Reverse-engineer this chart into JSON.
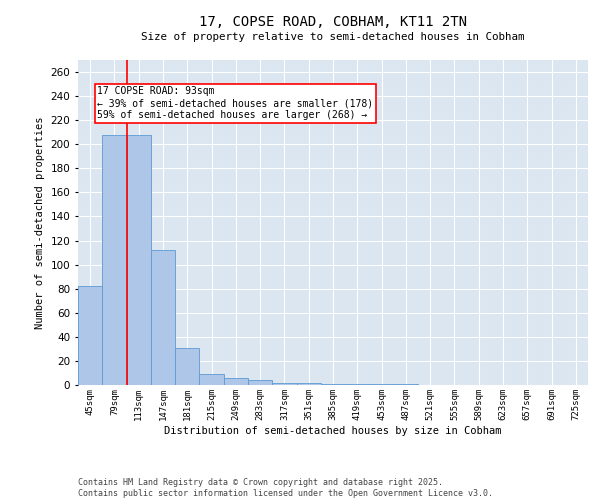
{
  "title1": "17, COPSE ROAD, COBHAM, KT11 2TN",
  "title2": "Size of property relative to semi-detached houses in Cobham",
  "xlabel": "Distribution of semi-detached houses by size in Cobham",
  "ylabel": "Number of semi-detached properties",
  "categories": [
    "45sqm",
    "79sqm",
    "113sqm",
    "147sqm",
    "181sqm",
    "215sqm",
    "249sqm",
    "283sqm",
    "317sqm",
    "351sqm",
    "385sqm",
    "419sqm",
    "453sqm",
    "487sqm",
    "521sqm",
    "555sqm",
    "589sqm",
    "623sqm",
    "657sqm",
    "691sqm",
    "725sqm"
  ],
  "values": [
    82,
    208,
    208,
    112,
    31,
    9,
    6,
    4,
    2,
    2,
    1,
    1,
    1,
    1,
    0,
    0,
    0,
    0,
    0,
    0,
    0
  ],
  "bar_color": "#aec6e8",
  "bar_edge_color": "#5b9bd5",
  "vline_x": 1.5,
  "vline_color": "red",
  "annotation_text": "17 COPSE ROAD: 93sqm\n← 39% of semi-detached houses are smaller (178)\n59% of semi-detached houses are larger (268) →",
  "ylim": [
    0,
    270
  ],
  "yticks": [
    0,
    20,
    40,
    60,
    80,
    100,
    120,
    140,
    160,
    180,
    200,
    220,
    240,
    260
  ],
  "footer": "Contains HM Land Registry data © Crown copyright and database right 2025.\nContains public sector information licensed under the Open Government Licence v3.0.",
  "plot_bg_color": "#dce6f1"
}
